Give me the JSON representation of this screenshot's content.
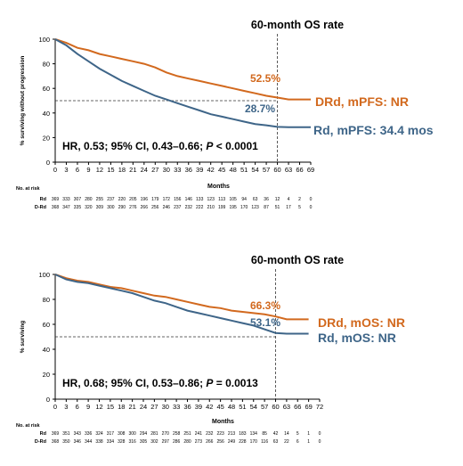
{
  "chart_data": [
    {
      "type": "line",
      "title": "60-month OS rate",
      "xlabel": "Months",
      "ylabel": "% surviving without progression",
      "xlim": [
        0,
        69
      ],
      "ylim": [
        0,
        100
      ],
      "x_ticks": [
        0,
        3,
        6,
        9,
        12,
        15,
        18,
        21,
        24,
        27,
        30,
        33,
        36,
        39,
        42,
        45,
        48,
        51,
        54,
        57,
        60,
        63,
        66,
        69
      ],
      "y_ticks": [
        0,
        20,
        40,
        60,
        80,
        100
      ],
      "reference_y": 50,
      "reference_x": 60,
      "hr_text": {
        "prefix": "HR, 0.53; 95% CI, 0.43–0.66; ",
        "p_label": "P",
        "suffix": " < 0.0001"
      },
      "series": [
        {
          "name": "DRd, mPFS: NR",
          "color": "#d2691e",
          "rate_label": "52.5%",
          "points": [
            [
              0,
              100
            ],
            [
              3,
              97
            ],
            [
              6,
              93
            ],
            [
              9,
              91
            ],
            [
              12,
              88
            ],
            [
              15,
              86
            ],
            [
              18,
              84
            ],
            [
              21,
              82
            ],
            [
              24,
              80
            ],
            [
              27,
              77
            ],
            [
              30,
              73
            ],
            [
              33,
              70
            ],
            [
              36,
              68
            ],
            [
              39,
              66
            ],
            [
              42,
              64
            ],
            [
              45,
              62
            ],
            [
              48,
              60
            ],
            [
              51,
              58
            ],
            [
              54,
              56
            ],
            [
              57,
              54
            ],
            [
              60,
              52.5
            ],
            [
              63,
              51
            ],
            [
              66,
              51
            ],
            [
              69,
              51
            ]
          ]
        },
        {
          "name": "Rd, mPFS: 34.4 mos",
          "color": "#3e6588",
          "rate_label": "28.7%",
          "points": [
            [
              0,
              100
            ],
            [
              3,
              95
            ],
            [
              6,
              88
            ],
            [
              9,
              82
            ],
            [
              12,
              76
            ],
            [
              15,
              71
            ],
            [
              18,
              66
            ],
            [
              21,
              62
            ],
            [
              24,
              58
            ],
            [
              27,
              54
            ],
            [
              30,
              51
            ],
            [
              33,
              48
            ],
            [
              36,
              45
            ],
            [
              39,
              42
            ],
            [
              42,
              39
            ],
            [
              45,
              37
            ],
            [
              48,
              35
            ],
            [
              51,
              33
            ],
            [
              54,
              31
            ],
            [
              57,
              30
            ],
            [
              60,
              28.7
            ],
            [
              63,
              28.5
            ],
            [
              66,
              28.5
            ],
            [
              69,
              28.5
            ]
          ]
        }
      ],
      "at_risk": {
        "header": "No. at risk",
        "rows": [
          {
            "label": "Rd",
            "values": [
              "369",
              "333",
              "307",
              "280",
              "255",
              "237",
              "220",
              "205",
              "196",
              "179",
              "172",
              "156",
              "146",
              "133",
              "123",
              "113",
              "105",
              "94",
              "63",
              "36",
              "12",
              "4",
              "2",
              "0"
            ]
          },
          {
            "label": "D-Rd",
            "values": [
              "368",
              "347",
              "335",
              "320",
              "309",
              "300",
              "290",
              "276",
              "266",
              "256",
              "246",
              "237",
              "232",
              "222",
              "210",
              "199",
              "195",
              "170",
              "123",
              "87",
              "51",
              "17",
              "5",
              "0"
            ]
          }
        ]
      }
    },
    {
      "type": "line",
      "title": "60-month OS rate",
      "xlabel": "Months",
      "ylabel": "% surviving",
      "xlim": [
        0,
        72
      ],
      "ylim": [
        0,
        100
      ],
      "x_ticks": [
        0,
        3,
        6,
        9,
        12,
        15,
        18,
        21,
        24,
        27,
        30,
        33,
        36,
        39,
        42,
        45,
        48,
        51,
        54,
        57,
        60,
        63,
        66,
        69,
        72
      ],
      "y_ticks": [
        0,
        20,
        40,
        60,
        80,
        100
      ],
      "reference_y": 50,
      "reference_x": 60,
      "hr_text": {
        "prefix": "HR, 0.68; 95% CI, 0.53–0.86; ",
        "p_label": "P",
        "suffix": " = 0.0013"
      },
      "series": [
        {
          "name": "DRd, mOS: NR",
          "color": "#d2691e",
          "rate_label": "66.3%",
          "points": [
            [
              0,
              100
            ],
            [
              3,
              97
            ],
            [
              6,
              95
            ],
            [
              9,
              94
            ],
            [
              12,
              92
            ],
            [
              15,
              90
            ],
            [
              18,
              89
            ],
            [
              21,
              87
            ],
            [
              24,
              85
            ],
            [
              27,
              83
            ],
            [
              30,
              82
            ],
            [
              33,
              80
            ],
            [
              36,
              78
            ],
            [
              39,
              76
            ],
            [
              42,
              74
            ],
            [
              45,
              73
            ],
            [
              48,
              71
            ],
            [
              51,
              70
            ],
            [
              54,
              69
            ],
            [
              57,
              68
            ],
            [
              60,
              66.3
            ],
            [
              63,
              64
            ],
            [
              66,
              64
            ],
            [
              69,
              64
            ]
          ]
        },
        {
          "name": "Rd, mOS: NR",
          "color": "#3e6588",
          "rate_label": "53.1%",
          "points": [
            [
              0,
              100
            ],
            [
              3,
              96
            ],
            [
              6,
              94
            ],
            [
              9,
              93
            ],
            [
              12,
              91
            ],
            [
              15,
              89
            ],
            [
              18,
              87
            ],
            [
              21,
              85
            ],
            [
              24,
              82
            ],
            [
              27,
              79
            ],
            [
              30,
              77
            ],
            [
              33,
              74
            ],
            [
              36,
              71
            ],
            [
              39,
              69
            ],
            [
              42,
              67
            ],
            [
              45,
              65
            ],
            [
              48,
              63
            ],
            [
              51,
              61
            ],
            [
              54,
              59
            ],
            [
              57,
              56
            ],
            [
              60,
              53.1
            ],
            [
              63,
              52.5
            ],
            [
              66,
              52.5
            ],
            [
              69,
              52.5
            ]
          ]
        }
      ],
      "at_risk": {
        "header": "No. at risk",
        "rows": [
          {
            "label": "Rd",
            "values": [
              "369",
              "351",
              "343",
              "336",
              "324",
              "317",
              "308",
              "300",
              "294",
              "281",
              "270",
              "258",
              "251",
              "241",
              "232",
              "223",
              "213",
              "183",
              "134",
              "85",
              "42",
              "14",
              "5",
              "1",
              "0"
            ]
          },
          {
            "label": "D-Rd",
            "values": [
              "368",
              "350",
              "346",
              "344",
              "338",
              "334",
              "328",
              "316",
              "305",
              "302",
              "297",
              "286",
              "280",
              "273",
              "266",
              "256",
              "249",
              "228",
              "170",
              "116",
              "63",
              "22",
              "6",
              "1",
              "0"
            ]
          }
        ]
      }
    }
  ]
}
